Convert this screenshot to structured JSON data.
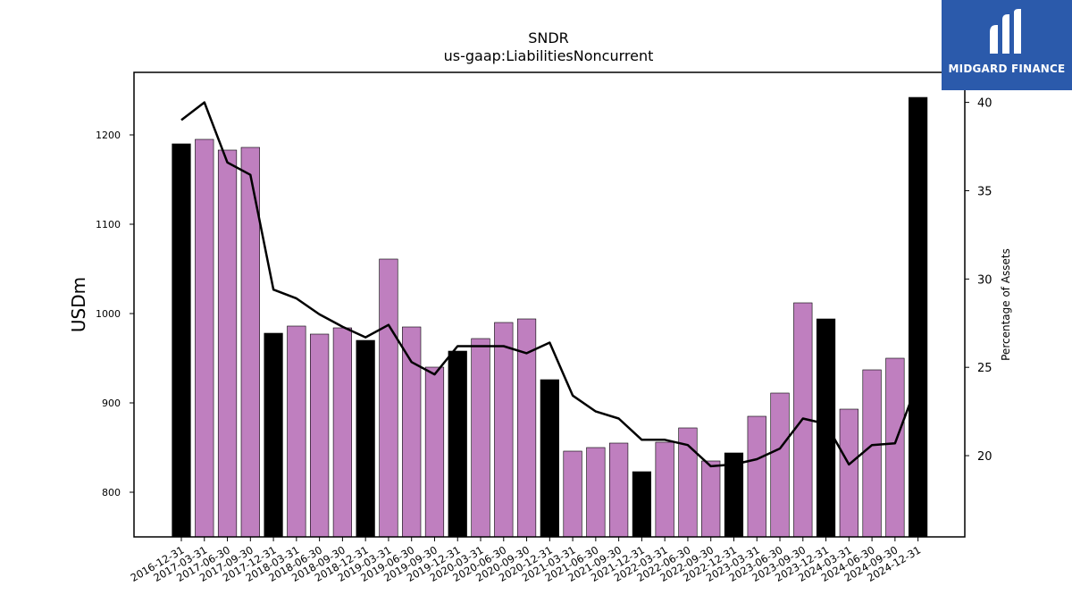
{
  "brand": {
    "name": "MIDGARD FINANCE",
    "logo_icon": "midgard-m-logo-icon",
    "background": "#2b5aab"
  },
  "colors": {
    "annual_bar": "#000000",
    "quarter_bar": "#bf7fbf",
    "line": "#000000"
  },
  "chart_data": {
    "type": "bar",
    "title": "SNDR",
    "subtitle": "us-gaap:LiabilitiesNoncurrent",
    "ylabel": "USDm",
    "y2label": "Percentage of Assets",
    "ylim": [
      750,
      1270
    ],
    "y2lim": [
      15.4,
      41.7
    ],
    "yticks": [
      800,
      900,
      1000,
      1100,
      1200
    ],
    "y2ticks": [
      20,
      25,
      30,
      35,
      40
    ],
    "categories": [
      "2016-12-31",
      "2017-03-31",
      "2017-06-30",
      "2017-09-30",
      "2017-12-31",
      "2018-03-31",
      "2018-06-30",
      "2018-09-30",
      "2018-12-31",
      "2019-03-31",
      "2019-06-30",
      "2019-09-30",
      "2019-12-31",
      "2020-03-31",
      "2020-06-30",
      "2020-09-30",
      "2020-12-31",
      "2021-03-31",
      "2021-06-30",
      "2021-09-30",
      "2021-12-31",
      "2022-03-31",
      "2022-06-30",
      "2022-09-30",
      "2022-12-31",
      "2023-03-31",
      "2023-06-30",
      "2023-09-30",
      "2023-12-31",
      "2024-03-31",
      "2024-06-30",
      "2024-09-30",
      "2024-12-31"
    ],
    "series": [
      {
        "type": "bar",
        "axis": "left",
        "values": [
          1190,
          1195,
          1183,
          1186,
          978,
          986,
          977,
          984,
          970,
          1061,
          985,
          940,
          958,
          972,
          990,
          994,
          926,
          846,
          850,
          855,
          823,
          856,
          872,
          835,
          844,
          885,
          911,
          1012,
          994,
          893,
          937,
          950,
          1242
        ],
        "annual_flags": [
          true,
          false,
          false,
          false,
          true,
          false,
          false,
          false,
          true,
          false,
          false,
          false,
          true,
          false,
          false,
          false,
          true,
          false,
          false,
          false,
          true,
          false,
          false,
          false,
          true,
          false,
          false,
          false,
          true,
          false,
          false,
          false,
          true
        ]
      },
      {
        "type": "line",
        "axis": "right",
        "values": [
          39.0,
          40.0,
          36.6,
          35.9,
          29.4,
          28.9,
          28.0,
          27.3,
          26.7,
          27.4,
          25.3,
          24.6,
          26.2,
          26.2,
          26.2,
          25.8,
          26.4,
          23.4,
          22.5,
          22.1,
          20.9,
          20.9,
          20.6,
          19.4,
          19.5,
          19.8,
          20.4,
          22.1,
          21.8,
          19.5,
          20.6,
          20.7,
          24.2
        ]
      }
    ]
  }
}
